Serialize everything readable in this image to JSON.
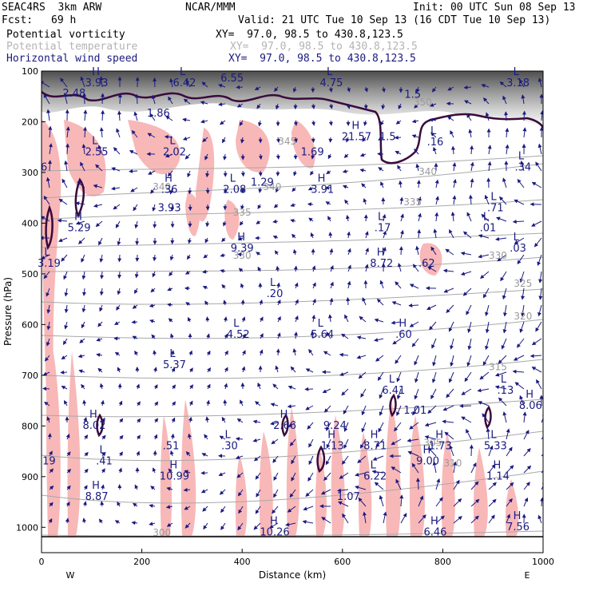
{
  "header": {
    "model": "SEAC4RS  3km ARW",
    "org": "NCAR/MMM",
    "init": "Init: 00 UTC Sun 08 Sep 13",
    "fcst_label": "Fcst:",
    "fcst_value": "69 h",
    "valid": "Valid: 21 UTC Tue 10 Sep 13 (16 CDT Tue 10 Sep 13)"
  },
  "fields": [
    {
      "name": "Potential vorticity",
      "xy": "XY=  97.0, 98.5 to 430.8,123.5",
      "color": "#000000"
    },
    {
      "name": "Potential temperature",
      "xy": "XY=  97.0, 98.5 to 430.8,123.5",
      "color": "#b4b4b4"
    },
    {
      "name": "Horizontal wind speed",
      "xy": "XY=  97.0, 98.5 to 430.8,123.5",
      "color": "#1a1a80"
    }
  ],
  "chart_data": {
    "type": "vertical-cross-section",
    "xlabel": "Distance (km)",
    "ylabel": "Pressure (hPa)",
    "xlim": [
      0,
      1000
    ],
    "ylim": [
      1050,
      100
    ],
    "x_ticks": [
      0,
      200,
      400,
      600,
      800,
      1000
    ],
    "y_ticks": [
      100,
      200,
      300,
      400,
      500,
      600,
      700,
      800,
      900,
      1000
    ],
    "x_end_labels": {
      "left": "W",
      "right": "E"
    },
    "theta_contours": [
      {
        "label": "300",
        "x": 240,
        "p": 1017
      },
      {
        "label": "305",
        "x": 780,
        "p": 840
      },
      {
        "label": "310",
        "x": 820,
        "p": 880
      },
      {
        "label": "315",
        "x": 910,
        "p": 690
      },
      {
        "label": "320",
        "x": 960,
        "p": 590
      },
      {
        "label": "325",
        "x": 960,
        "p": 525
      },
      {
        "label": "330",
        "x": 400,
        "p": 470
      },
      {
        "label": "330",
        "x": 910,
        "p": 470
      },
      {
        "label": "335",
        "x": 400,
        "p": 385
      },
      {
        "label": "335",
        "x": 740,
        "p": 365
      },
      {
        "label": "340",
        "x": 240,
        "p": 335
      },
      {
        "label": "340",
        "x": 460,
        "p": 335
      },
      {
        "label": "340",
        "x": 770,
        "p": 305
      },
      {
        "label": "345",
        "x": 490,
        "p": 245
      },
      {
        "label": "350",
        "x": 760,
        "p": 168
      }
    ],
    "extrema": [
      {
        "type": "H",
        "value": "3.93",
        "x": 110,
        "p": 127
      },
      {
        "type": "",
        "value": "2.48",
        "x": 65,
        "p": 147
      },
      {
        "type": "L",
        "value": "6.42",
        "x": 285,
        "p": 127
      },
      {
        "type": "",
        "value": "6.55",
        "x": 380,
        "p": 117
      },
      {
        "type": "L",
        "value": "4.75",
        "x": 578,
        "p": 127
      },
      {
        "type": "L",
        "value": "3.18",
        "x": 950,
        "p": 127
      },
      {
        "type": "",
        "value": "1.5",
        "x": 740,
        "p": 150
      },
      {
        "type": "",
        "value": "1.86",
        "x": 233,
        "p": 187
      },
      {
        "type": "L",
        "value": "2.55",
        "x": 110,
        "p": 263
      },
      {
        "type": "L",
        "value": "2.02",
        "x": 265,
        "p": 263
      },
      {
        "type": "H",
        "value": "21.57",
        "x": 628,
        "p": 233
      },
      {
        "type": "",
        "value": "1.5",
        "x": 690,
        "p": 233
      },
      {
        "type": "",
        "value": "1.69",
        "x": 540,
        "p": 263
      },
      {
        "type": "L",
        "value": ".16",
        "x": 785,
        "p": 243
      },
      {
        "type": "L",
        "value": ".34",
        "x": 960,
        "p": 293
      },
      {
        "type": "",
        "value": "6",
        "x": 5,
        "p": 293
      },
      {
        "type": "L",
        "value": "2.08",
        "x": 385,
        "p": 337
      },
      {
        "type": "",
        "value": "1.29",
        "x": 440,
        "p": 323
      },
      {
        "type": "H",
        "value": "3.91",
        "x": 560,
        "p": 337
      },
      {
        "type": "H",
        "value": ".36",
        "x": 255,
        "p": 337
      },
      {
        "type": "",
        "value": "3.93",
        "x": 255,
        "p": 373
      },
      {
        "type": "L",
        "value": ".71",
        "x": 905,
        "p": 373
      },
      {
        "type": "H",
        "value": "5.29",
        "x": 75,
        "p": 413
      },
      {
        "type": "L",
        "value": ".17",
        "x": 680,
        "p": 413
      },
      {
        "type": "L",
        "value": ".01",
        "x": 890,
        "p": 413
      },
      {
        "type": "H",
        "value": "9.39",
        "x": 400,
        "p": 453
      },
      {
        "type": "L",
        "value": ".03",
        "x": 950,
        "p": 453
      },
      {
        "type": "L",
        "value": "3.19",
        "x": 15,
        "p": 483
      },
      {
        "type": "H",
        "value": "8.72",
        "x": 678,
        "p": 483
      },
      {
        "type": "",
        "value": ".62",
        "x": 768,
        "p": 483
      },
      {
        "type": "L",
        "value": ".20",
        "x": 465,
        "p": 543
      },
      {
        "type": "L",
        "value": "4.52",
        "x": 392,
        "p": 623
      },
      {
        "type": "L",
        "value": "5.64",
        "x": 560,
        "p": 623
      },
      {
        "type": "H",
        "value": ".60",
        "x": 722,
        "p": 623
      },
      {
        "type": "L",
        "value": "5.37",
        "x": 265,
        "p": 683
      },
      {
        "type": "L",
        "value": "6.41",
        "x": 702,
        "p": 733
      },
      {
        "type": "L",
        "value": ".13",
        "x": 925,
        "p": 733
      },
      {
        "type": "H",
        "value": "8.06",
        "x": 975,
        "p": 763
      },
      {
        "type": "",
        "value": "1.01",
        "x": 745,
        "p": 773
      },
      {
        "type": "H",
        "value": "8.02",
        "x": 105,
        "p": 803
      },
      {
        "type": "H",
        "value": "2.66",
        "x": 485,
        "p": 803
      },
      {
        "type": "",
        "value": "9.24",
        "x": 585,
        "p": 803
      },
      {
        "type": "H",
        "value": "1.13",
        "x": 580,
        "p": 843
      },
      {
        "type": "H",
        "value": "8.71",
        "x": 665,
        "p": 843
      },
      {
        "type": "H",
        "value": "1.73",
        "x": 795,
        "p": 843
      },
      {
        "type": "L",
        "value": "5.33",
        "x": 905,
        "p": 843
      },
      {
        "type": "",
        "value": ".51",
        "x": 258,
        "p": 843
      },
      {
        "type": "L",
        "value": ".30",
        "x": 375,
        "p": 843
      },
      {
        "type": "L",
        "value": ".41",
        "x": 125,
        "p": 873
      },
      {
        "type": "",
        "value": "19",
        "x": 15,
        "p": 873
      },
      {
        "type": "H",
        "value": "9.00",
        "x": 770,
        "p": 873
      },
      {
        "type": "H",
        "value": "10.99",
        "x": 265,
        "p": 903
      },
      {
        "type": "L",
        "value": "6.22",
        "x": 665,
        "p": 903
      },
      {
        "type": "H",
        "value": "1.14",
        "x": 910,
        "p": 903
      },
      {
        "type": "H",
        "value": "8.87",
        "x": 110,
        "p": 943
      },
      {
        "type": "",
        "value": "1.07",
        "x": 612,
        "p": 943
      },
      {
        "type": "H",
        "value": "10.26",
        "x": 465,
        "p": 1013
      },
      {
        "type": "H",
        "value": "6.46",
        "x": 785,
        "p": 1013
      },
      {
        "type": "H",
        "value": "7.56",
        "x": 950,
        "p": 1003
      }
    ]
  }
}
